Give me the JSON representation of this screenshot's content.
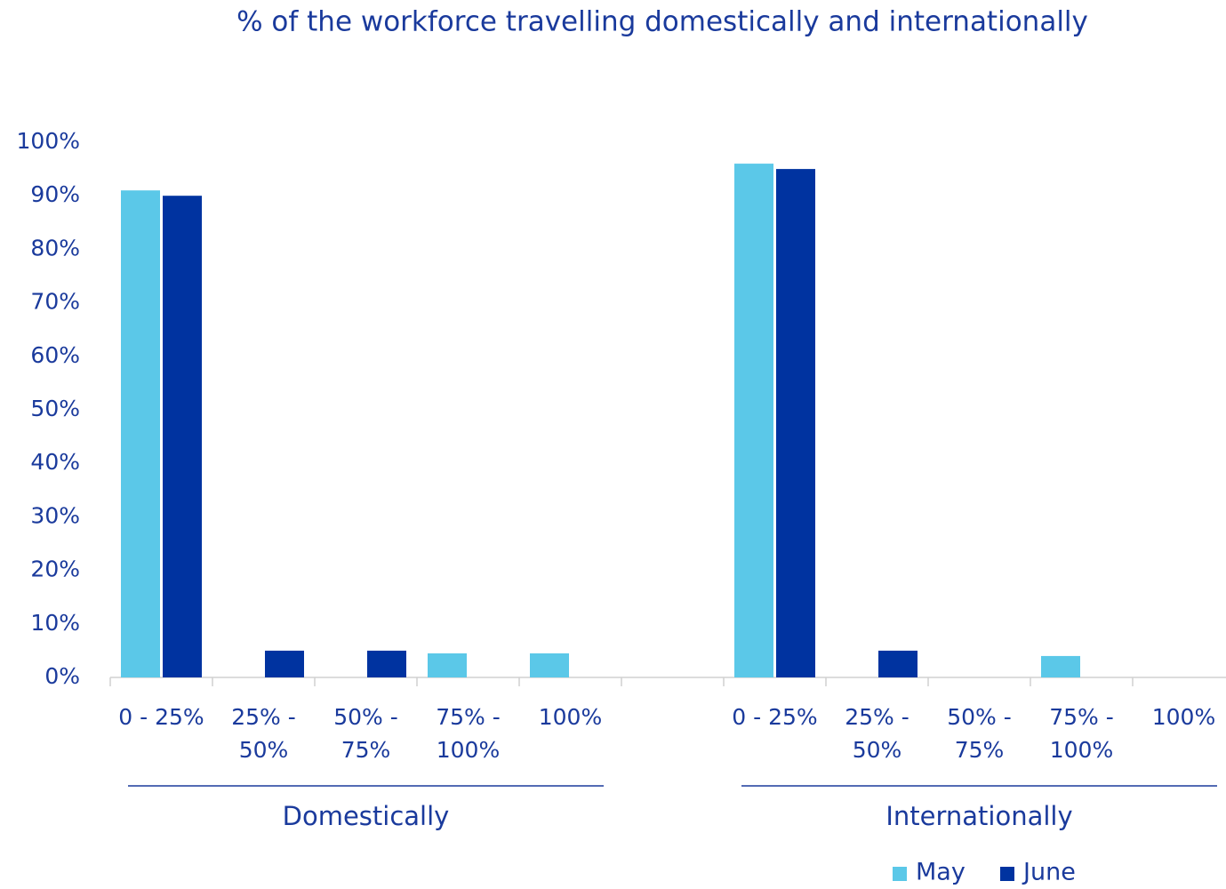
{
  "chart_data": {
    "type": "bar",
    "title": "% of the workforce travelling domestically and internationally",
    "categories": [
      "0 - 25%",
      "25% - 50%",
      "50% - 75%",
      "75% - 100%",
      "100%",
      null,
      "0 - 25%",
      "25% - 50%",
      "50% - 75%",
      "75% - 100%",
      "100%"
    ],
    "groups": [
      {
        "label": "Domestically",
        "start": 0,
        "end": 4
      },
      {
        "label": "Internationally",
        "start": 6,
        "end": 10
      }
    ],
    "series": [
      {
        "name": "May",
        "color": "#5bc8e8",
        "values": [
          91,
          0,
          0,
          4.5,
          4.5,
          null,
          96,
          0,
          0,
          4,
          0
        ]
      },
      {
        "name": "June",
        "color": "#0033a0",
        "values": [
          90,
          5,
          5,
          0,
          0,
          null,
          95,
          5,
          0,
          0,
          0
        ]
      }
    ],
    "ylim": [
      0,
      100
    ],
    "yticks": [
      {
        "value": 0,
        "label": "0%"
      },
      {
        "value": 10,
        "label": "10%"
      },
      {
        "value": 20,
        "label": "20%"
      },
      {
        "value": 30,
        "label": "30%"
      },
      {
        "value": 40,
        "label": "40%"
      },
      {
        "value": 50,
        "label": "50%"
      },
      {
        "value": 60,
        "label": "60%"
      },
      {
        "value": 70,
        "label": "70%"
      },
      {
        "value": 80,
        "label": "80%"
      },
      {
        "value": 90,
        "label": "90%"
      },
      {
        "value": 100,
        "label": "100%"
      }
    ],
    "grid": false,
    "legend": "bottom-right"
  }
}
